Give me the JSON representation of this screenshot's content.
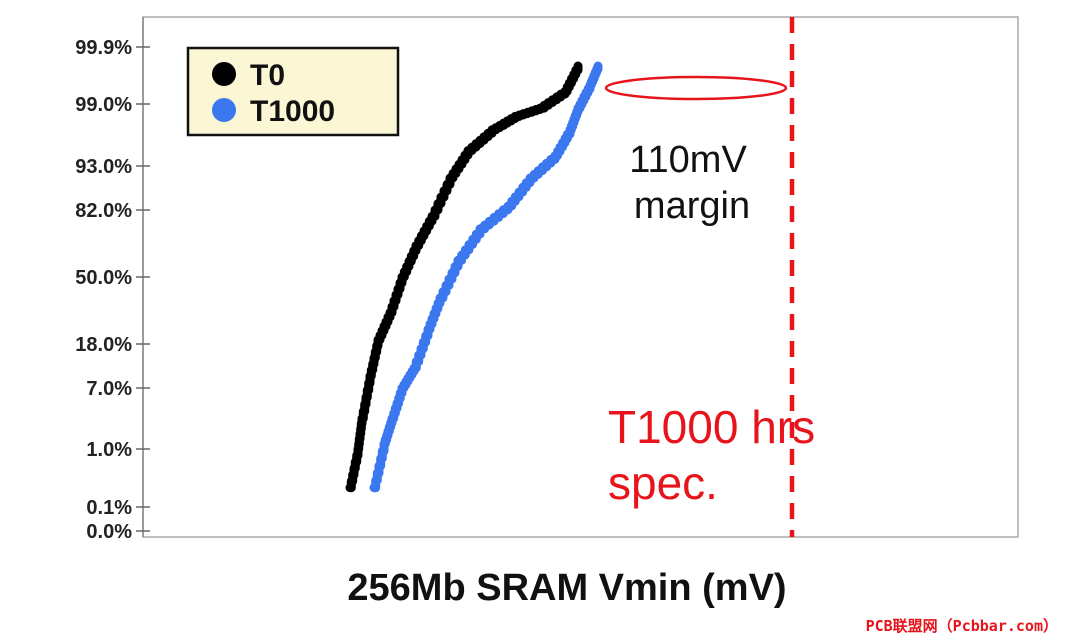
{
  "chart_data": {
    "type": "line",
    "xlabel": "256Mb SRAM Vmin (mV)",
    "ylabel": "",
    "y_scale": "probability",
    "y_ticks": [
      "99.9%",
      "99.0%",
      "93.0%",
      "82.0%",
      "50.0%",
      "18.0%",
      "7.0%",
      "1.0%",
      "0.1%",
      "0.0%"
    ],
    "x_ticks": [],
    "grid": false,
    "legend": {
      "placement": "top-left",
      "entries": [
        {
          "label": "T0",
          "color": "#000000"
        },
        {
          "label": "T1000",
          "color": "#3b78f0"
        }
      ]
    },
    "series": [
      {
        "name": "T0",
        "color": "#000000",
        "points": [
          [
            350,
            0.4
          ],
          [
            358,
            1.0
          ],
          [
            362,
            4.0
          ],
          [
            370,
            10.0
          ],
          [
            378,
            20.0
          ],
          [
            390,
            33.0
          ],
          [
            402,
            50.0
          ],
          [
            416,
            65.0
          ],
          [
            432,
            79.0
          ],
          [
            450,
            90.0
          ],
          [
            468,
            94.5
          ],
          [
            492,
            96.5
          ],
          [
            515,
            97.8
          ],
          [
            540,
            98.6
          ],
          [
            565,
            99.2
          ],
          [
            578,
            99.6
          ]
        ]
      },
      {
        "name": "T1000",
        "color": "#3b78f0",
        "points": [
          [
            374,
            0.4
          ],
          [
            384,
            1.5
          ],
          [
            392,
            4.0
          ],
          [
            402,
            7.0
          ],
          [
            414,
            12.0
          ],
          [
            428,
            25.0
          ],
          [
            440,
            40.0
          ],
          [
            458,
            58.0
          ],
          [
            480,
            73.0
          ],
          [
            508,
            83.0
          ],
          [
            530,
            90.0
          ],
          [
            555,
            94.0
          ],
          [
            570,
            96.5
          ],
          [
            578,
            98.6
          ],
          [
            590,
            99.3
          ],
          [
            598,
            99.6
          ]
        ]
      }
    ],
    "annotations": {
      "margin_text_1": "110mV",
      "margin_text_2": "margin",
      "spec_text_1": "T1000 hrs",
      "spec_text_2": "spec."
    },
    "spec_line_color": "#e8141c"
  },
  "watermark": "PCB联盟网（Pcbbar.com）"
}
